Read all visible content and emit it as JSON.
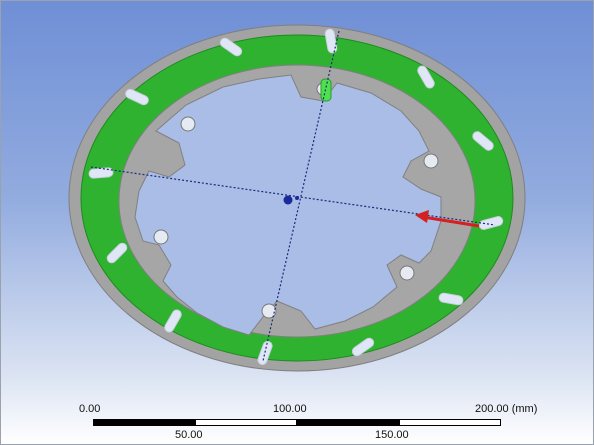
{
  "viewport": {
    "background_top": "#6f8fd6",
    "background_bottom": "#ffffff"
  },
  "model": {
    "ring_color": "#2fb22f",
    "frame_color": "#a3a3a3",
    "slot_color": "#dfe7f7",
    "origin_color": "#1a2a9a",
    "force_arrow_color": "#d42020",
    "icons": [
      "origin-marker-icon",
      "force-arrow-icon",
      "axis-line-icon"
    ]
  },
  "scale_bar": {
    "labels_top": [
      "0.00",
      "100.00",
      "200.00 (mm)"
    ],
    "labels_bottom": [
      "50.00",
      "150.00"
    ]
  }
}
